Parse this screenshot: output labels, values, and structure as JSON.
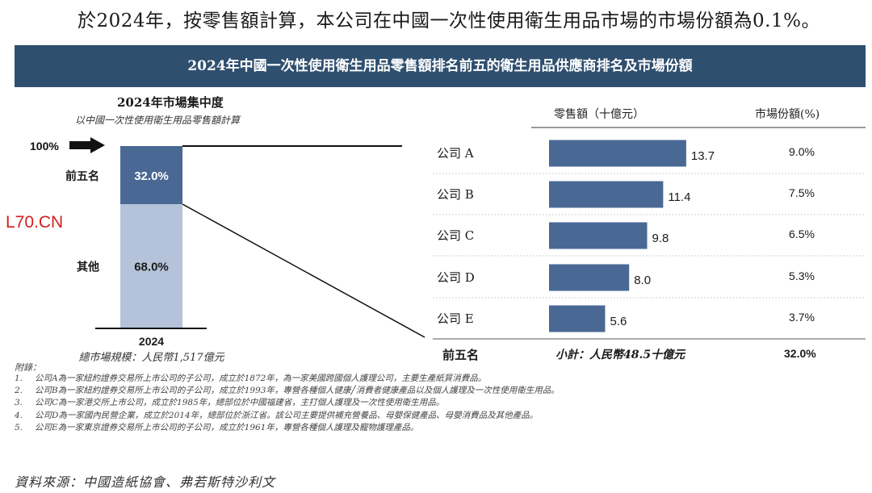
{
  "intro_text": "於2024年，按零售額計算，本公司在中國一次性使用衛生用品市場的市場份額為0.1%。",
  "banner_title": "2024年中國一次性使用衛生用品零售額排名前五的衛生用品供應商排名及市場份額",
  "left_chart": {
    "title": "2024年市場集中度",
    "subtitle": "以中國一次性使用衛生用品零售額計算",
    "marker_label": "100%",
    "year_label": "2024",
    "total_label": "總市場規模：人民幣1,517億元"
  },
  "right_chart": {
    "col_sales": "零售額（十億元）",
    "col_share": "市場份額(%)",
    "footer_label": "前五名",
    "footer_subtotal": "小計：人民幣48.5十億元",
    "footer_share": "32.0%"
  },
  "chart_data": [
    {
      "type": "bar",
      "stacked": true,
      "title": "2024年市場集中度",
      "subtitle": "以中國一次性使用衛生用品零售額計算",
      "categories": [
        "2024"
      ],
      "series": [
        {
          "name": "前五名",
          "values": [
            32.0
          ],
          "value_label": "32.0%",
          "color": "#4a6894"
        },
        {
          "name": "其他",
          "values": [
            68.0
          ],
          "value_label": "68.0%",
          "color": "#b4c3d9"
        }
      ],
      "ylim": [
        0,
        100
      ],
      "note": "總市場規模：人民幣1,517億元"
    },
    {
      "type": "bar",
      "orientation": "horizontal",
      "categories": [
        "公司 A",
        "公司 B",
        "公司 C",
        "公司 D",
        "公司 E"
      ],
      "values": [
        13.7,
        11.4,
        9.8,
        8.0,
        5.6
      ],
      "value_labels": [
        "13.7",
        "11.4",
        "9.8",
        "8.0",
        "5.6"
      ],
      "shares": [
        "9.0%",
        "7.5%",
        "6.5%",
        "5.3%",
        "3.7%"
      ],
      "xlabel": "零售額（十億元）",
      "share_label": "市場份額(%)",
      "xlim": [
        0,
        16
      ],
      "color": "#4a6894"
    }
  ],
  "notes": {
    "heading": "附錄：",
    "items": [
      "公司A為一家紐約證券交易所上市公司的子公司，成立於1872年，為一家美國跨國個人護理公司，主要生產紙質消費品。",
      "公司B為一家紐約證券交易所上市公司的子公司，成立於1993年，專營各種個人健康╱消費者健康產品以及個人護理及一次性使用衛生用品。",
      "公司C為一家港交所上市公司，成立於1985年，總部位於中國福建省，主打個人護理及一次性使用衛生用品。",
      "公司D為一家國內民營企業，成立於2014年，總部位於浙江省。該公司主要提供補充營養品、母嬰保健產品、母嬰消費品及其他產品。",
      "公司E為一家東京證券交易所上市公司的子公司，成立於1961年，專營各種個人護理及寵物護理產品。"
    ]
  },
  "source_text": "資料來源：中國造紙協會、弗若斯特沙利文",
  "watermark": "L70.CN"
}
